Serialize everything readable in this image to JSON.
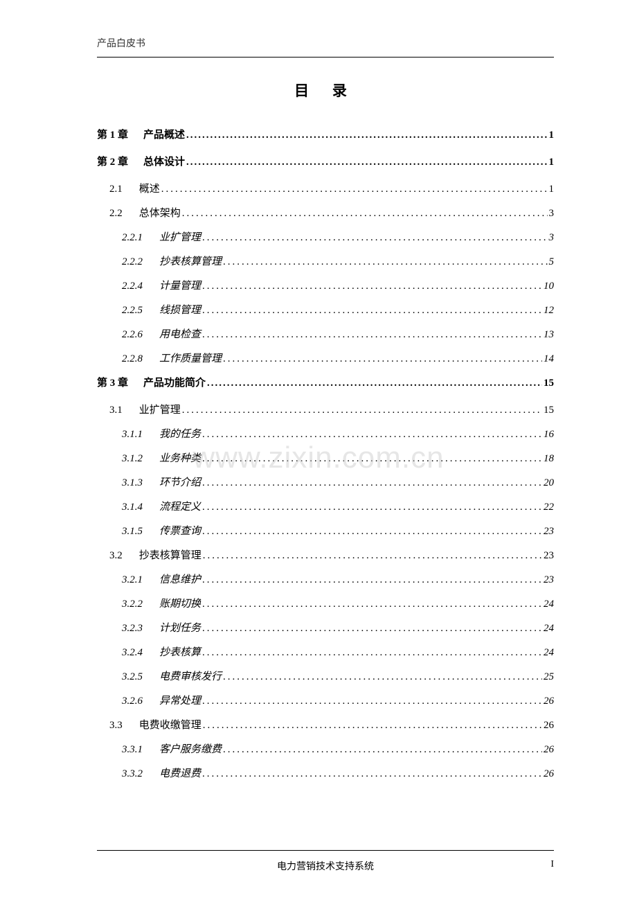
{
  "header_text": "产品白皮书",
  "toc_title": "目 录",
  "watermark": "www.zixin.com.cn",
  "footer_center": "电力营销技术支持系统",
  "footer_right": "I",
  "dots_fill": "...........................................................................................................................................",
  "entries": [
    {
      "level": "chapter",
      "num": "第 1 章",
      "label": "产品概述",
      "page": "1"
    },
    {
      "level": "chapter",
      "num": "第 2 章",
      "label": "总体设计",
      "page": "1"
    },
    {
      "level": "section",
      "num": "2.1",
      "label": "概述",
      "page": "1"
    },
    {
      "level": "section",
      "num": "2.2",
      "label": "总体架构",
      "page": "3"
    },
    {
      "level": "subsection",
      "num": "2.2.1",
      "label": "业扩管理",
      "page": "3"
    },
    {
      "level": "subsection",
      "num": "2.2.2",
      "label": "抄表核算管理",
      "page": "5"
    },
    {
      "level": "subsection",
      "num": "2.2.4",
      "label": "计量管理",
      "page": "10"
    },
    {
      "level": "subsection",
      "num": "2.2.5",
      "label": "线损管理",
      "page": "12"
    },
    {
      "level": "subsection",
      "num": "2.2.6",
      "label": "用电检查",
      "page": "13"
    },
    {
      "level": "subsection",
      "num": "2.2.8",
      "label": "工作质量管理",
      "page": "14"
    },
    {
      "level": "chapter",
      "num": "第 3 章",
      "label": "产品功能简介",
      "page": "15"
    },
    {
      "level": "section",
      "num": "3.1",
      "label": "业扩管理",
      "page": "15"
    },
    {
      "level": "subsection",
      "num": "3.1.1",
      "label": "我的任务",
      "page": "16"
    },
    {
      "level": "subsection",
      "num": "3.1.2",
      "label": "业务种类",
      "page": "18"
    },
    {
      "level": "subsection",
      "num": "3.1.3",
      "label": "环节介绍",
      "page": "20"
    },
    {
      "level": "subsection",
      "num": "3.1.4",
      "label": "流程定义",
      "page": "22"
    },
    {
      "level": "subsection",
      "num": "3.1.5",
      "label": "传票查询",
      "page": "23"
    },
    {
      "level": "section",
      "num": "3.2",
      "label": "抄表核算管理",
      "page": "23"
    },
    {
      "level": "subsection",
      "num": "3.2.1",
      "label": "信息维护",
      "page": "23"
    },
    {
      "level": "subsection",
      "num": "3.2.2",
      "label": "账期切换",
      "page": "24"
    },
    {
      "level": "subsection",
      "num": "3.2.3",
      "label": "计划任务",
      "page": "24"
    },
    {
      "level": "subsection",
      "num": "3.2.4",
      "label": "抄表核算",
      "page": "24"
    },
    {
      "level": "subsection",
      "num": "3.2.5",
      "label": "电费审核发行",
      "page": "25"
    },
    {
      "level": "subsection",
      "num": "3.2.6",
      "label": "异常处理",
      "page": "26"
    },
    {
      "level": "section",
      "num": "3.3",
      "label": "电费收缴管理",
      "page": "26"
    },
    {
      "level": "subsection",
      "num": "3.3.1",
      "label": "客户服务缴费",
      "page": "26"
    },
    {
      "level": "subsection",
      "num": "3.3.2",
      "label": "电费退费",
      "page": "26"
    }
  ]
}
